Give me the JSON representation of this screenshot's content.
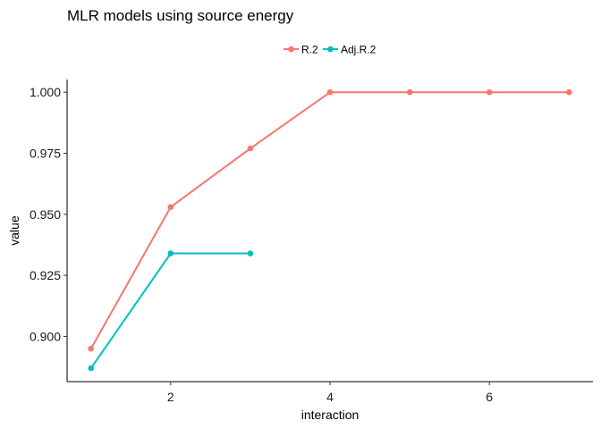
{
  "chart_data": {
    "type": "line",
    "title": "MLR models using source energy",
    "xlabel": "interaction",
    "ylabel": "value",
    "xlim": [
      0.7,
      7.3
    ],
    "ylim": [
      0.8815,
      1.0052
    ],
    "x_ticks": [
      2,
      4,
      6
    ],
    "y_ticks": [
      0.9,
      0.925,
      0.95,
      0.975,
      1.0
    ],
    "x_tick_labels": [
      "2",
      "4",
      "6"
    ],
    "y_tick_labels": [
      "0.900",
      "0.925",
      "0.950",
      "0.975",
      "1.000"
    ],
    "grid": false,
    "legend_position": "top",
    "series": [
      {
        "name": "R.2",
        "color": "#F8766D",
        "x": [
          1,
          2,
          3,
          4,
          5,
          6,
          7
        ],
        "values": [
          0.895,
          0.953,
          0.977,
          1.0,
          1.0,
          1.0,
          1.0
        ]
      },
      {
        "name": "Adj.R.2",
        "color": "#00BFC4",
        "x": [
          1,
          2,
          3
        ],
        "values": [
          0.887,
          0.934,
          0.934
        ]
      }
    ]
  }
}
